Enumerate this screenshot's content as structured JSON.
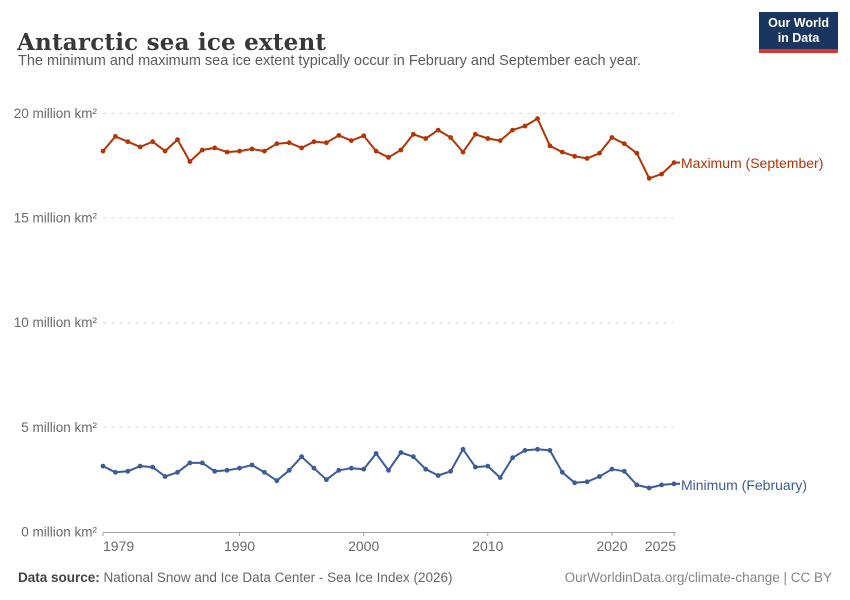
{
  "header": {
    "title": "Antarctic sea ice extent",
    "subtitle": "The minimum and maximum sea ice extent typically occur in February and September each year.",
    "logo": {
      "line1": "Our World",
      "line2": "in Data",
      "bg_color": "#1a3660",
      "accent_color": "#d73732"
    }
  },
  "chart_data": {
    "type": "line",
    "title": "Antarctic sea ice extent",
    "xlabel": "",
    "ylabel": "million km²",
    "xlim": [
      1979,
      2025
    ],
    "ylim": [
      0,
      20
    ],
    "grid": "horizontal dashed",
    "legend_position": "right of last point, colored text labels",
    "x": [
      1979,
      1980,
      1981,
      1982,
      1983,
      1984,
      1985,
      1986,
      1987,
      1988,
      1989,
      1990,
      1991,
      1992,
      1993,
      1994,
      1995,
      1996,
      1997,
      1998,
      1999,
      2000,
      2001,
      2002,
      2003,
      2004,
      2005,
      2006,
      2007,
      2008,
      2009,
      2010,
      2011,
      2012,
      2013,
      2014,
      2015,
      2016,
      2017,
      2018,
      2019,
      2020,
      2021,
      2022,
      2023,
      2024,
      2025
    ],
    "xticks": [
      1979,
      1990,
      2000,
      2010,
      2020,
      2025
    ],
    "xtick_labels": [
      "1979",
      "1990",
      "2000",
      "2010",
      "2020",
      "2025"
    ],
    "yticks": [
      0,
      5,
      10,
      15,
      20
    ],
    "ytick_labels": [
      "0 million km²",
      "5 million km²",
      "10 million km²",
      "15 million km²",
      "20 million km²"
    ],
    "series": [
      {
        "name": "Maximum (September)",
        "color": "#b13507",
        "values": [
          18.2,
          18.9,
          18.65,
          18.4,
          18.65,
          18.2,
          18.75,
          17.7,
          18.25,
          18.35,
          18.15,
          18.2,
          18.3,
          18.2,
          18.55,
          18.6,
          18.35,
          18.65,
          18.6,
          18.95,
          18.7,
          18.93,
          18.2,
          17.9,
          18.25,
          19.0,
          18.8,
          19.2,
          18.85,
          18.15,
          19.0,
          18.8,
          18.7,
          19.2,
          19.4,
          19.75,
          18.45,
          18.15,
          17.95,
          17.85,
          18.1,
          18.85,
          18.55,
          18.1,
          16.9,
          17.1,
          17.65
        ]
      },
      {
        "name": "Minimum (February)",
        "color": "#3d5b96",
        "values": [
          3.15,
          2.85,
          2.9,
          3.15,
          3.1,
          2.65,
          2.85,
          3.3,
          3.3,
          2.9,
          2.95,
          3.05,
          3.2,
          2.85,
          2.45,
          2.95,
          3.6,
          3.05,
          2.5,
          2.95,
          3.05,
          3.0,
          3.75,
          2.95,
          3.8,
          3.6,
          3.0,
          2.7,
          2.9,
          3.95,
          3.1,
          3.15,
          2.6,
          3.55,
          3.9,
          3.95,
          3.9,
          2.85,
          2.35,
          2.4,
          2.65,
          3.0,
          2.9,
          2.25,
          2.1,
          2.25,
          2.3
        ]
      }
    ]
  },
  "footer": {
    "source_label": "Data source:",
    "source_text": " National Snow and Ice Data Center - Sea Ice Index (2026)",
    "right_text": "OurWorldinData.org/climate-change | CC BY"
  },
  "style": {
    "grid_color": "#dadada",
    "axis_color": "#a3a3a3",
    "tick_text_color": "#696969"
  }
}
